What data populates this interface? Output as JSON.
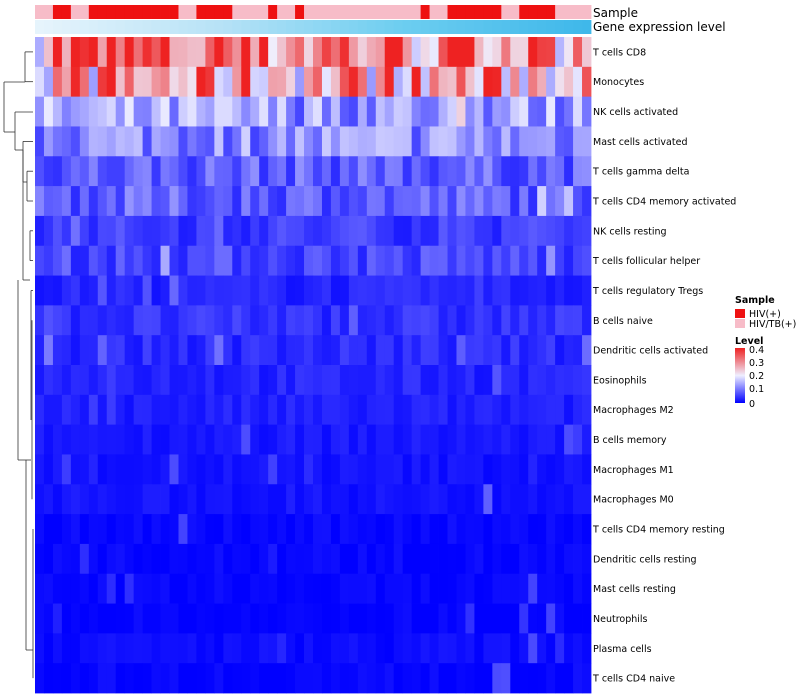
{
  "chart_data": {
    "type": "heatmap",
    "title": "",
    "annotation_tracks": [
      "Sample",
      "Gene expression level"
    ],
    "sample_groups": [
      {
        "label": "HIV(+)",
        "color": "#ee1111"
      },
      {
        "label": "HIV/TB(+)",
        "color": "#f7bcc8"
      }
    ],
    "sample_assignment": [
      1,
      1,
      0,
      0,
      1,
      1,
      0,
      0,
      0,
      0,
      0,
      0,
      0,
      0,
      0,
      0,
      1,
      1,
      0,
      0,
      0,
      0,
      1,
      1,
      1,
      1,
      0,
      1,
      1,
      0,
      1,
      1,
      1,
      1,
      1,
      1,
      1,
      1,
      1,
      1,
      1,
      1,
      1,
      0,
      1,
      1,
      0,
      0,
      0,
      0,
      0,
      0,
      1,
      1,
      0,
      0,
      0,
      0,
      1,
      1,
      1,
      1
    ],
    "expression_gradient": [
      "#e6f4fc",
      "#b6e2f6",
      "#6ccdf0",
      "#3fb8ea"
    ],
    "rows": [
      "T cells CD8",
      "Monocytes",
      "NK cells activated",
      "Mast cells activated",
      "T cells gamma delta",
      "T cells CD4 memory activated",
      "NK cells resting",
      "T cells follicular helper",
      "T cells regulatory  Tregs",
      "B cells naive",
      "Dendritic cells activated",
      "Eosinophils",
      "Macrophages M2",
      "B cells memory",
      "Macrophages M1",
      "Macrophages M0",
      "T cells CD4 memory resting",
      "Dendritic cells resting",
      "Mast cells resting",
      "Neutrophils",
      "Plasma cells",
      "T cells CD4 naive"
    ],
    "row_means": [
      0.32,
      0.27,
      0.13,
      0.12,
      0.08,
      0.08,
      0.05,
      0.06,
      0.03,
      0.04,
      0.035,
      0.03,
      0.025,
      0.02,
      0.015,
      0.015,
      0.005,
      0.005,
      0.003,
      0.002,
      0.01,
      0.005
    ],
    "n_columns": 62,
    "color_scale": {
      "title": "Level",
      "min": 0,
      "max": 0.4,
      "ticks": [
        0.4,
        0.3,
        0.2,
        0.1,
        0
      ],
      "colors": [
        {
          "value": 0,
          "color": "#0000ff"
        },
        {
          "value": 0.2,
          "color": "#efefff"
        },
        {
          "value": 0.4,
          "color": "#ee2222"
        }
      ]
    },
    "dendrogram": "row-clustering-tree",
    "legend_position": "right"
  },
  "legend": {
    "sample_title": "Sample",
    "sample_items": [
      "HIV(+)",
      "HIV/TB(+)"
    ],
    "level_title": "Level",
    "level_ticks": [
      "0.4",
      "0.3",
      "0.2",
      "0.1",
      "0"
    ]
  }
}
